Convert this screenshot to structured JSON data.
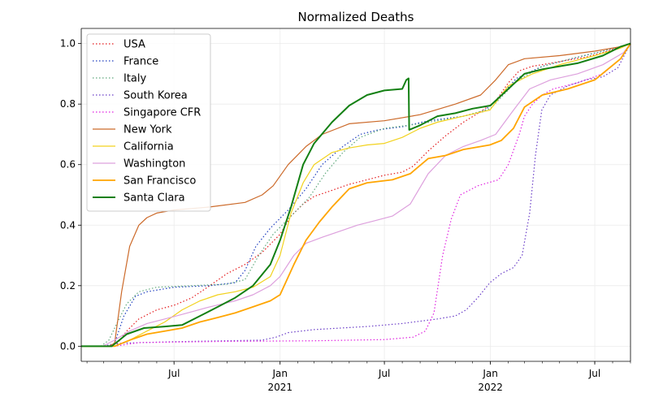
{
  "chart_data": {
    "type": "line",
    "title": "Normalized Deaths",
    "xlabel": "",
    "ylabel": "",
    "x_range": [
      "2020-01-22",
      "2022-09-01"
    ],
    "ylim": [
      -0.05,
      1.05
    ],
    "yticks": [
      0.0,
      0.2,
      0.4,
      0.6,
      0.8,
      1.0
    ],
    "ytick_labels": [
      "0.0",
      "0.2",
      "0.4",
      "0.6",
      "0.8",
      "1.0"
    ],
    "xticks": [
      {
        "date": "2020-07-01",
        "label": "Jul",
        "sub": ""
      },
      {
        "date": "2021-01-01",
        "label": "Jan",
        "sub": "2021"
      },
      {
        "date": "2021-07-01",
        "label": "Jul",
        "sub": ""
      },
      {
        "date": "2022-01-01",
        "label": "Jan",
        "sub": "2022"
      },
      {
        "date": "2022-07-01",
        "label": "Jul",
        "sub": ""
      }
    ],
    "grid": true,
    "legend_position": "upper left",
    "series": [
      {
        "name": "USA",
        "color": "#e41a1c",
        "style": "dotted",
        "width": 1.2,
        "x": [
          "2020-01-22",
          "2020-03-10",
          "2020-03-25",
          "2020-04-10",
          "2020-05-01",
          "2020-06-01",
          "2020-07-01",
          "2020-08-01",
          "2020-09-01",
          "2020-10-01",
          "2020-11-01",
          "2020-12-01",
          "2021-01-01",
          "2021-01-20",
          "2021-02-10",
          "2021-03-01",
          "2021-04-01",
          "2021-05-01",
          "2021-06-01",
          "2021-07-01",
          "2021-08-01",
          "2021-08-20",
          "2021-09-15",
          "2021-10-15",
          "2021-11-15",
          "2021-12-15",
          "2022-01-10",
          "2022-02-01",
          "2022-02-20",
          "2022-03-15",
          "2022-04-15",
          "2022-05-15",
          "2022-06-15",
          "2022-07-15",
          "2022-08-15",
          "2022-09-01"
        ],
        "y": [
          0,
          0,
          0.01,
          0.05,
          0.09,
          0.12,
          0.135,
          0.16,
          0.2,
          0.24,
          0.27,
          0.31,
          0.37,
          0.43,
          0.47,
          0.495,
          0.515,
          0.535,
          0.55,
          0.565,
          0.575,
          0.595,
          0.645,
          0.695,
          0.74,
          0.775,
          0.81,
          0.87,
          0.91,
          0.925,
          0.935,
          0.945,
          0.955,
          0.97,
          0.99,
          1.0
        ]
      },
      {
        "name": "France",
        "color": "#1f3fbf",
        "style": "dotted",
        "width": 1.2,
        "x": [
          "2020-01-22",
          "2020-03-05",
          "2020-03-20",
          "2020-04-05",
          "2020-04-25",
          "2020-05-15",
          "2020-07-01",
          "2020-09-01",
          "2020-10-15",
          "2020-11-01",
          "2020-11-20",
          "2020-12-15",
          "2021-01-15",
          "2021-02-15",
          "2021-03-15",
          "2021-04-20",
          "2021-05-20",
          "2021-06-20",
          "2021-08-01",
          "2021-09-15",
          "2021-11-15",
          "2021-12-20",
          "2022-01-20",
          "2022-02-15",
          "2022-04-01",
          "2022-06-01",
          "2022-07-15",
          "2022-08-15",
          "2022-09-01"
        ],
        "y": [
          0,
          0,
          0.01,
          0.1,
          0.165,
          0.18,
          0.195,
          0.2,
          0.21,
          0.25,
          0.33,
          0.39,
          0.45,
          0.52,
          0.6,
          0.66,
          0.7,
          0.715,
          0.725,
          0.745,
          0.76,
          0.775,
          0.83,
          0.885,
          0.925,
          0.955,
          0.975,
          0.99,
          1.0
        ]
      },
      {
        "name": "Italy",
        "color": "#5fa87c",
        "style": "dotted",
        "width": 1.2,
        "x": [
          "2020-01-22",
          "2020-02-25",
          "2020-03-10",
          "2020-03-25",
          "2020-04-10",
          "2020-05-01",
          "2020-06-01",
          "2020-08-01",
          "2020-10-01",
          "2020-11-01",
          "2020-11-25",
          "2020-12-20",
          "2021-01-20",
          "2021-02-20",
          "2021-03-20",
          "2021-04-20",
          "2021-05-20",
          "2021-07-01",
          "2021-09-01",
          "2021-11-15",
          "2022-01-01",
          "2022-02-15",
          "2022-04-01",
          "2022-06-01",
          "2022-07-15",
          "2022-08-15",
          "2022-09-01"
        ],
        "y": [
          0,
          0,
          0.02,
          0.08,
          0.14,
          0.18,
          0.195,
          0.2,
          0.205,
          0.22,
          0.3,
          0.37,
          0.43,
          0.49,
          0.57,
          0.64,
          0.69,
          0.72,
          0.735,
          0.76,
          0.785,
          0.875,
          0.925,
          0.955,
          0.975,
          0.99,
          1.0
        ]
      },
      {
        "name": "South Korea",
        "color": "#6a3dc8",
        "style": "dotted",
        "width": 1.2,
        "x": [
          "2020-01-22",
          "2020-02-25",
          "2020-04-01",
          "2020-07-01",
          "2020-12-01",
          "2020-12-25",
          "2021-01-15",
          "2021-03-01",
          "2021-06-01",
          "2021-08-01",
          "2021-10-01",
          "2021-11-01",
          "2021-11-20",
          "2021-12-10",
          "2021-12-31",
          "2022-01-20",
          "2022-02-10",
          "2022-02-25",
          "2022-03-10",
          "2022-03-20",
          "2022-03-31",
          "2022-04-15",
          "2022-05-15",
          "2022-06-15",
          "2022-07-15",
          "2022-08-10",
          "2022-09-01"
        ],
        "y": [
          0,
          0,
          0.01,
          0.015,
          0.02,
          0.03,
          0.045,
          0.055,
          0.065,
          0.075,
          0.09,
          0.1,
          0.12,
          0.16,
          0.21,
          0.24,
          0.26,
          0.3,
          0.44,
          0.63,
          0.78,
          0.83,
          0.86,
          0.88,
          0.89,
          0.92,
          1.0
        ]
      },
      {
        "name": "Singapore CFR",
        "color": "#e020e0",
        "style": "dotted",
        "width": 1.2,
        "x": [
          "2020-01-22",
          "2020-03-20",
          "2020-05-01",
          "2020-10-01",
          "2021-03-01",
          "2021-07-01",
          "2021-08-20",
          "2021-09-10",
          "2021-09-25",
          "2021-10-10",
          "2021-10-25",
          "2021-11-10",
          "2021-11-25",
          "2021-12-10",
          "2022-01-15",
          "2022-02-01",
          "2022-02-20",
          "2022-03-01",
          "2022-03-15",
          "2022-04-01",
          "2022-04-20",
          "2022-06-01",
          "2022-07-15",
          "2022-08-15",
          "2022-09-01"
        ],
        "y": [
          0,
          0,
          0.012,
          0.016,
          0.018,
          0.022,
          0.03,
          0.05,
          0.11,
          0.3,
          0.42,
          0.5,
          0.515,
          0.53,
          0.55,
          0.6,
          0.7,
          0.76,
          0.8,
          0.83,
          0.85,
          0.87,
          0.9,
          0.95,
          1.0
        ]
      },
      {
        "name": "New York",
        "color": "#cc6a2a",
        "style": "solid",
        "width": 1.2,
        "x": [
          "2020-01-22",
          "2020-03-10",
          "2020-03-20",
          "2020-04-01",
          "2020-04-15",
          "2020-05-01",
          "2020-05-15",
          "2020-06-01",
          "2020-07-01",
          "2020-09-01",
          "2020-11-01",
          "2020-12-01",
          "2020-12-20",
          "2021-01-15",
          "2021-02-15",
          "2021-03-15",
          "2021-05-01",
          "2021-07-01",
          "2021-09-01",
          "2021-11-01",
          "2021-12-15",
          "2022-01-10",
          "2022-02-01",
          "2022-03-01",
          "2022-05-01",
          "2022-07-01",
          "2022-08-15",
          "2022-09-01"
        ],
        "y": [
          0,
          0,
          0.01,
          0.18,
          0.33,
          0.4,
          0.425,
          0.44,
          0.45,
          0.46,
          0.475,
          0.5,
          0.53,
          0.6,
          0.66,
          0.7,
          0.735,
          0.745,
          0.765,
          0.8,
          0.83,
          0.88,
          0.93,
          0.95,
          0.96,
          0.975,
          0.99,
          1.0
        ]
      },
      {
        "name": "California",
        "color": "#f2d21d",
        "style": "solid",
        "width": 1.2,
        "x": [
          "2020-01-22",
          "2020-03-20",
          "2020-04-15",
          "2020-05-15",
          "2020-06-15",
          "2020-07-15",
          "2020-08-15",
          "2020-09-15",
          "2020-10-15",
          "2020-11-15",
          "2020-12-15",
          "2021-01-01",
          "2021-01-20",
          "2021-02-10",
          "2021-03-01",
          "2021-04-01",
          "2021-05-01",
          "2021-06-01",
          "2021-07-01",
          "2021-08-01",
          "2021-09-01",
          "2021-10-01",
          "2021-11-15",
          "2021-12-31",
          "2022-02-01",
          "2022-03-15",
          "2022-05-01",
          "2022-07-01",
          "2022-08-15",
          "2022-09-01"
        ],
        "y": [
          0,
          0,
          0.02,
          0.05,
          0.08,
          0.12,
          0.15,
          0.17,
          0.18,
          0.195,
          0.23,
          0.3,
          0.44,
          0.54,
          0.6,
          0.64,
          0.655,
          0.665,
          0.67,
          0.69,
          0.72,
          0.74,
          0.76,
          0.78,
          0.86,
          0.9,
          0.93,
          0.96,
          0.985,
          1.0
        ]
      },
      {
        "name": "Washington",
        "color": "#dda0dd",
        "style": "solid",
        "width": 1.2,
        "x": [
          "2020-01-22",
          "2020-02-28",
          "2020-03-20",
          "2020-04-15",
          "2020-05-15",
          "2020-06-15",
          "2020-07-15",
          "2020-09-01",
          "2020-10-15",
          "2020-11-15",
          "2020-12-15",
          "2021-01-01",
          "2021-01-25",
          "2021-02-15",
          "2021-03-15",
          "2021-04-15",
          "2021-05-15",
          "2021-06-15",
          "2021-07-15",
          "2021-08-15",
          "2021-09-15",
          "2021-10-15",
          "2021-11-15",
          "2021-12-15",
          "2022-01-10",
          "2022-02-10",
          "2022-03-10",
          "2022-04-15",
          "2022-06-01",
          "2022-07-15",
          "2022-08-20",
          "2022-09-01"
        ],
        "y": [
          0,
          0,
          0.02,
          0.05,
          0.075,
          0.09,
          0.105,
          0.13,
          0.15,
          0.17,
          0.2,
          0.23,
          0.3,
          0.34,
          0.36,
          0.38,
          0.4,
          0.415,
          0.43,
          0.47,
          0.57,
          0.63,
          0.66,
          0.68,
          0.7,
          0.78,
          0.85,
          0.88,
          0.9,
          0.93,
          0.97,
          1.0
        ]
      },
      {
        "name": "San Francisco",
        "color": "#ffa500",
        "style": "solid",
        "width": 1.8,
        "x": [
          "2020-01-22",
          "2020-03-20",
          "2020-04-15",
          "2020-05-15",
          "2020-06-15",
          "2020-07-15",
          "2020-08-15",
          "2020-09-15",
          "2020-10-15",
          "2020-11-15",
          "2020-12-15",
          "2021-01-01",
          "2021-01-25",
          "2021-02-15",
          "2021-03-10",
          "2021-04-01",
          "2021-05-01",
          "2021-06-01",
          "2021-07-15",
          "2021-08-15",
          "2021-09-15",
          "2021-10-15",
          "2021-11-15",
          "2021-12-31",
          "2022-01-20",
          "2022-02-10",
          "2022-03-01",
          "2022-04-01",
          "2022-05-15",
          "2022-07-01",
          "2022-08-15",
          "2022-09-01"
        ],
        "y": [
          0,
          0,
          0.02,
          0.04,
          0.05,
          0.06,
          0.08,
          0.095,
          0.11,
          0.13,
          0.15,
          0.17,
          0.27,
          0.35,
          0.41,
          0.46,
          0.52,
          0.54,
          0.55,
          0.57,
          0.62,
          0.63,
          0.65,
          0.665,
          0.68,
          0.72,
          0.79,
          0.83,
          0.85,
          0.88,
          0.95,
          1.0
        ]
      },
      {
        "name": "Santa Clara",
        "color": "#138013",
        "style": "solid",
        "width": 2.0,
        "x": [
          "2020-01-22",
          "2020-03-15",
          "2020-04-10",
          "2020-05-10",
          "2020-06-15",
          "2020-07-15",
          "2020-08-15",
          "2020-09-15",
          "2020-10-15",
          "2020-11-15",
          "2020-12-15",
          "2021-01-01",
          "2021-01-20",
          "2021-02-10",
          "2021-03-01",
          "2021-04-01",
          "2021-05-01",
          "2021-06-01",
          "2021-07-01",
          "2021-08-01",
          "2021-08-08",
          "2021-08-12",
          "2021-08-13",
          "2021-09-01",
          "2021-10-01",
          "2021-11-01",
          "2021-12-01",
          "2022-01-01",
          "2022-02-01",
          "2022-03-01",
          "2022-04-01",
          "2022-05-01",
          "2022-06-01",
          "2022-07-15",
          "2022-08-15",
          "2022-09-01"
        ],
        "y": [
          0,
          0,
          0.04,
          0.06,
          0.065,
          0.07,
          0.1,
          0.13,
          0.16,
          0.2,
          0.27,
          0.35,
          0.46,
          0.6,
          0.67,
          0.74,
          0.795,
          0.83,
          0.845,
          0.85,
          0.88,
          0.885,
          0.715,
          0.73,
          0.76,
          0.77,
          0.785,
          0.795,
          0.85,
          0.9,
          0.915,
          0.925,
          0.935,
          0.96,
          0.99,
          1.0
        ]
      }
    ]
  }
}
